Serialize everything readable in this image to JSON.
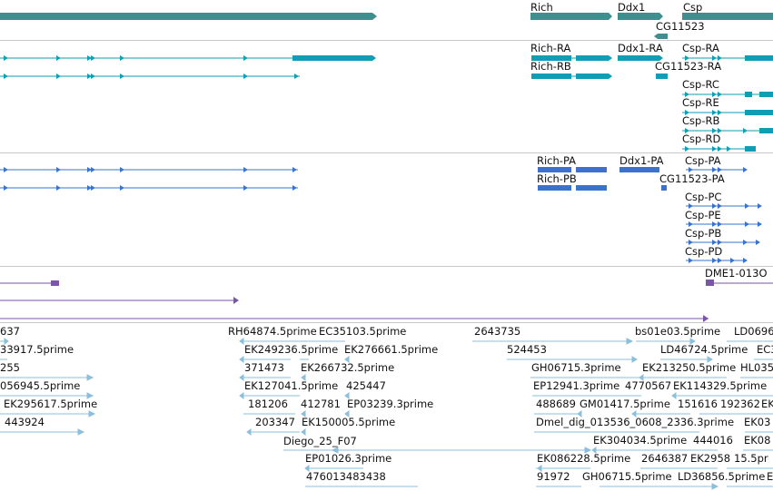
{
  "colors": {
    "genes": "#3f8f8f",
    "transcripts": "#119eb5",
    "proteins": "#3a72cc",
    "other": "#7a55aa",
    "ests": "#8cbfdc",
    "divider": "#c9c9c9"
  },
  "gene_track": {
    "labels": [
      "Rich",
      "Ddx1",
      "Csp",
      "CG11523"
    ]
  },
  "transcript_track": {
    "labels": [
      "Rich-RA",
      "Rich-RB",
      "Ddx1-RA",
      "CG11523-RA",
      "Csp-RA",
      "Csp-RC",
      "Csp-RE",
      "Csp-RB",
      "Csp-RD"
    ]
  },
  "protein_track": {
    "labels": [
      "Rich-PA",
      "Rich-PB",
      "Ddx1-PA",
      "CG11523-PA",
      "Csp-PA",
      "Csp-PC",
      "Csp-PE",
      "Csp-PB",
      "Csp-PD"
    ]
  },
  "other_track": {
    "labels": [
      "DME1-013O"
    ]
  },
  "est_track": {
    "labels": [
      "637",
      "RH64874.5prime",
      "EC35103.5prime",
      "2643735",
      "bs01e03.5prime",
      "LD0696",
      "33917.5prime",
      "EK249236.5prime",
      "EK276661.5prime",
      "524453",
      "LD46724.5prime",
      "EC3",
      "255",
      "371473",
      "EK266732.5prime",
      "GH06715.3prime",
      "EK213250.5prime",
      "HL035",
      "056945.5prime",
      "EK127041.5prime",
      "425447",
      "EP12941.3prime",
      "4770567",
      "EK114329.5prime",
      "EK295617.5prime",
      "181206",
      "412781",
      "EP03239.3prime",
      "488689",
      "GM01417.5prime",
      "151616",
      "192362",
      "EK",
      "443924",
      "203347",
      "EK150005.5prime",
      "Dmel_dig_013536_0608_2336.3prime",
      "EK03",
      "Diego_25_F07",
      "EK304034.5prime",
      "444016",
      "EK08",
      "EP01026.3prime",
      "EK086228.5prime",
      "2646387",
      "EK2958",
      "15.5pr",
      "476013483438",
      "91972",
      "GH06715.5prime",
      "LD36856.5prime",
      "EK"
    ]
  }
}
